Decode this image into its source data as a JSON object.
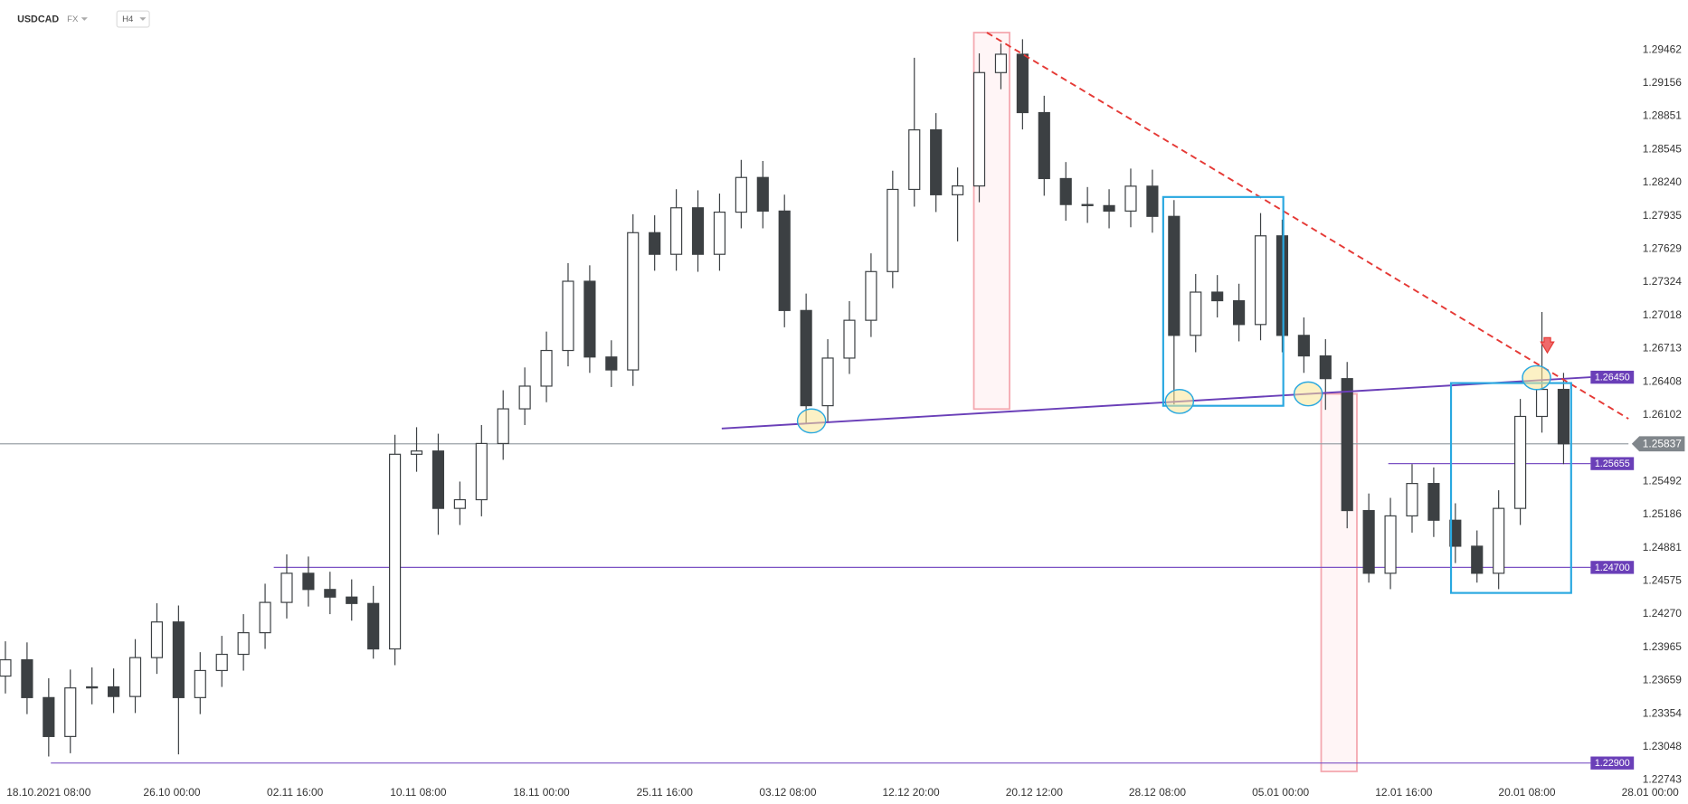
{
  "chart_data": {
    "type": "candlestick",
    "symbol": "USDCAD",
    "market": "FX",
    "timeframe": "H4",
    "ylim": [
      1.22524,
      1.2992
    ],
    "yticks": [
      1.29462,
      1.29156,
      1.28851,
      1.28545,
      {
        "value": 1.2824,
        "label": "1.28240"
      },
      1.27935,
      1.27629,
      1.27324,
      1.27018,
      1.26713,
      1.26408,
      1.26102,
      1.25492,
      1.25186,
      1.24881,
      1.24575,
      {
        "value": 1.2427,
        "label": "1.24270"
      },
      1.23965,
      1.23659,
      1.23354,
      1.23048,
      1.22743
    ],
    "xtick_labels": [
      "18.10.2021  08:00",
      "26.10  00:00",
      "02.11  16:00",
      "10.11  08:00",
      "18.11  00:00",
      "25.11  16:00",
      "03.12  08:00",
      "12.12  20:00",
      "20.12  12:00",
      "28.12  08:00",
      "05.01  00:00",
      "12.01  16:00",
      "20.01  08:00",
      "28.01  00:00"
    ],
    "current_price": 1.25837,
    "levels": [
      {
        "value": 1.2645,
        "label": "1.26450"
      },
      1.25655,
      {
        "value": 1.247,
        "label": "1.24700"
      },
      {
        "value": 1.229,
        "label": "1.22900"
      }
    ],
    "ohlc": [
      [
        1.237,
        1.2402,
        1.2354,
        1.2385
      ],
      [
        1.2385,
        1.2401,
        1.2335,
        1.23502
      ],
      [
        1.23502,
        1.2368,
        1.2296,
        1.23144
      ],
      [
        1.23144,
        1.2376,
        1.2299,
        1.23591
      ],
      [
        1.23591,
        1.2378,
        1.2344,
        1.23601
      ],
      [
        1.23601,
        1.2377,
        1.2336,
        1.23512
      ],
      [
        1.23512,
        1.2404,
        1.2336,
        1.2387
      ],
      [
        1.2387,
        1.2437,
        1.2372,
        1.24198
      ],
      [
        1.24198,
        1.2435,
        1.2298,
        1.23502
      ],
      [
        1.23502,
        1.2392,
        1.2335,
        1.23751
      ],
      [
        1.23751,
        1.2407,
        1.236,
        1.239
      ],
      [
        1.239,
        1.2427,
        1.2375,
        1.24099
      ],
      [
        1.24099,
        1.2455,
        1.2395,
        1.24378
      ],
      [
        1.24378,
        1.2482,
        1.2423,
        1.24646
      ],
      [
        1.24646,
        1.248,
        1.2434,
        1.24497
      ],
      [
        1.24497,
        1.2466,
        1.2427,
        1.24427
      ],
      [
        1.24427,
        1.2459,
        1.2421,
        1.24368
      ],
      [
        1.24368,
        1.2453,
        1.2386,
        1.2395
      ],
      [
        1.2395,
        1.2592,
        1.238,
        1.25741
      ],
      [
        1.25741,
        1.2599,
        1.2558,
        1.25771
      ],
      [
        1.25771,
        1.2593,
        1.25,
        1.25243
      ],
      [
        1.25243,
        1.2549,
        1.2509,
        1.25323
      ],
      [
        1.25323,
        1.2601,
        1.2517,
        1.2584
      ],
      [
        1.2584,
        1.2633,
        1.2569,
        1.26159
      ],
      [
        1.26159,
        1.2654,
        1.2601,
        1.26368
      ],
      [
        1.26368,
        1.2687,
        1.2622,
        1.26696
      ],
      [
        1.26696,
        1.275,
        1.2655,
        1.27333
      ],
      [
        1.27333,
        1.2748,
        1.2649,
        1.26636
      ],
      [
        1.26636,
        1.2679,
        1.2636,
        1.26517
      ],
      [
        1.26517,
        1.2795,
        1.2637,
        1.2778
      ],
      [
        1.2778,
        1.2794,
        1.2743,
        1.27581
      ],
      [
        1.27581,
        1.2818,
        1.2743,
        1.28009
      ],
      [
        1.28009,
        1.2817,
        1.2742,
        1.27581
      ],
      [
        1.27581,
        1.2814,
        1.2743,
        1.27969
      ],
      [
        1.27969,
        1.2845,
        1.2782,
        1.28288
      ],
      [
        1.28288,
        1.2844,
        1.2782,
        1.27979
      ],
      [
        1.27979,
        1.2813,
        1.2691,
        1.27064
      ],
      [
        1.27064,
        1.2722,
        1.2603,
        1.26188
      ],
      [
        1.26188,
        1.268,
        1.2604,
        1.26626
      ],
      [
        1.26626,
        1.2715,
        1.2648,
        1.26974
      ],
      [
        1.26974,
        1.2759,
        1.2682,
        1.27422
      ],
      [
        1.27422,
        1.2835,
        1.2727,
        1.28178
      ],
      [
        1.28178,
        1.2939,
        1.2802,
        1.28726
      ],
      [
        1.28726,
        1.2888,
        1.2797,
        1.28129
      ],
      [
        1.28129,
        1.2838,
        1.277,
        1.2821
      ],
      [
        1.2821,
        1.2943,
        1.2806,
        1.29253
      ],
      [
        1.29253,
        1.2952,
        1.291,
        1.29422
      ],
      [
        1.29422,
        1.2956,
        1.2873,
        1.28885
      ],
      [
        1.28885,
        1.2904,
        1.2812,
        1.28278
      ],
      [
        1.28278,
        1.2843,
        1.2789,
        1.28039
      ],
      [
        1.28039,
        1.282,
        1.2787,
        1.28029
      ],
      [
        1.28029,
        1.2818,
        1.2782,
        1.27979
      ],
      [
        1.27979,
        1.2837,
        1.2783,
        1.28208
      ],
      [
        1.28208,
        1.2836,
        1.2778,
        1.2793
      ],
      [
        1.2793,
        1.2808,
        1.262,
        1.26835
      ],
      [
        1.26835,
        1.274,
        1.2668,
        1.27233
      ],
      [
        1.27233,
        1.2739,
        1.27,
        1.27154
      ],
      [
        1.27154,
        1.2731,
        1.2678,
        1.26935
      ],
      [
        1.26935,
        1.2796,
        1.2679,
        1.27751
      ],
      [
        1.27751,
        1.279,
        1.2668,
        1.26835
      ],
      [
        1.26835,
        1.27,
        1.2649,
        1.26646
      ],
      [
        1.26646,
        1.268,
        1.2615,
        1.26437
      ],
      [
        1.26437,
        1.2659,
        1.2506,
        1.25223
      ],
      [
        1.25223,
        1.2538,
        1.2456,
        1.24646
      ],
      [
        1.24646,
        1.2534,
        1.245,
        1.25174
      ],
      [
        1.25174,
        1.2565,
        1.2502,
        1.25472
      ],
      [
        1.25472,
        1.2562,
        1.2498,
        1.25134
      ],
      [
        1.25134,
        1.2529,
        1.2474,
        1.24895
      ],
      [
        1.24895,
        1.2504,
        1.2456,
        1.24646
      ],
      [
        1.24646,
        1.2541,
        1.245,
        1.25243
      ],
      [
        1.25243,
        1.2625,
        1.2509,
        1.26089
      ],
      [
        1.26089,
        1.2705,
        1.2594,
        1.26338
      ],
      [
        1.26338,
        1.2649,
        1.2565,
        1.25837
      ]
    ]
  }
}
